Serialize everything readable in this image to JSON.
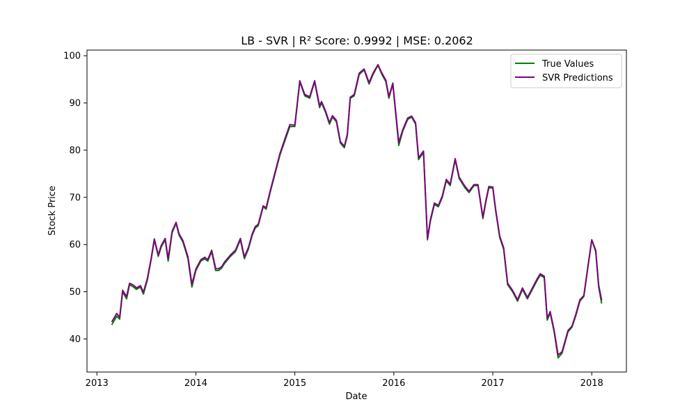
{
  "chart_data": {
    "type": "line",
    "title": "LB - SVR | R² Score: 0.9992 | MSE: 0.2062",
    "xlabel": "Date",
    "ylabel": "Stock Price",
    "x_ticks": [
      "2013",
      "2014",
      "2015",
      "2016",
      "2017",
      "2018"
    ],
    "y_ticks": [
      40,
      50,
      60,
      70,
      80,
      90,
      100
    ],
    "xlim": [
      2012.9,
      2018.35
    ],
    "ylim": [
      33,
      101.2
    ],
    "grid": false,
    "legend_position": "top-right",
    "series": [
      {
        "name": "True Values",
        "color": "#008000",
        "x": [
          2013.15,
          2013.2,
          2013.23,
          2013.26,
          2013.3,
          2013.33,
          2013.37,
          2013.4,
          2013.44,
          2013.47,
          2013.51,
          2013.55,
          2013.58,
          2013.62,
          2013.65,
          2013.69,
          2013.72,
          2013.76,
          2013.8,
          2013.83,
          2013.87,
          2013.92,
          2013.96,
          2014.0,
          2014.05,
          2014.09,
          2014.12,
          2014.16,
          2014.2,
          2014.23,
          2014.26,
          2014.29,
          2014.35,
          2014.4,
          2014.45,
          2014.49,
          2014.53,
          2014.57,
          2014.6,
          2014.63,
          2014.68,
          2014.71,
          2014.75,
          2014.8,
          2014.85,
          2014.9,
          2014.95,
          2015.0,
          2015.05,
          2015.1,
          2015.15,
          2015.2,
          2015.25,
          2015.27,
          2015.31,
          2015.35,
          2015.38,
          2015.42,
          2015.46,
          2015.5,
          2015.53,
          2015.56,
          2015.6,
          2015.65,
          2015.7,
          2015.75,
          2015.79,
          2015.84,
          2015.88,
          2015.92,
          2015.95,
          2015.99,
          2016.05,
          2016.09,
          2016.11,
          2016.14,
          2016.18,
          2016.22,
          2016.25,
          2016.3,
          2016.34,
          2016.37,
          2016.41,
          2016.45,
          2016.49,
          2016.53,
          2016.57,
          2016.62,
          2016.66,
          2016.72,
          2016.76,
          2016.81,
          2016.85,
          2016.9,
          2016.93,
          2016.96,
          2017.0,
          2017.03,
          2017.07,
          2017.11,
          2017.15,
          2017.2,
          2017.25,
          2017.3,
          2017.35,
          2017.4,
          2017.45,
          2017.48,
          2017.52,
          2017.55,
          2017.58,
          2017.62,
          2017.66,
          2017.7,
          2017.76,
          2017.8,
          2017.84,
          2017.88,
          2017.92,
          2017.96,
          2018.0,
          2018.04,
          2018.07,
          2018.1
        ],
        "values": [
          43.0,
          44.8,
          44.2,
          50.0,
          48.5,
          51.5,
          51.0,
          50.5,
          51.0,
          49.5,
          52.5,
          57.0,
          61.0,
          57.5,
          59.5,
          61.0,
          56.5,
          62.5,
          64.5,
          62.0,
          60.5,
          57.0,
          51.0,
          54.5,
          56.5,
          57.0,
          56.5,
          58.5,
          54.5,
          54.5,
          55.0,
          56.0,
          57.5,
          58.5,
          61.0,
          57.0,
          59.0,
          62.0,
          63.5,
          64.0,
          68.0,
          67.5,
          71.0,
          75.0,
          79.0,
          82.0,
          85.0,
          85.0,
          94.5,
          91.5,
          91.0,
          94.5,
          89.0,
          90.0,
          88.0,
          85.5,
          87.0,
          86.0,
          81.5,
          80.5,
          83.0,
          91.0,
          91.5,
          96.0,
          97.0,
          94.0,
          96.0,
          98.0,
          96.0,
          94.5,
          91.0,
          94.0,
          81.0,
          84.0,
          85.0,
          86.5,
          87.0,
          85.5,
          78.0,
          79.5,
          61.0,
          65.0,
          68.5,
          68.0,
          70.0,
          73.5,
          72.5,
          78.0,
          74.0,
          72.0,
          71.0,
          72.5,
          72.5,
          65.5,
          69.0,
          72.0,
          72.0,
          67.0,
          61.5,
          59.0,
          51.5,
          50.0,
          48.0,
          50.5,
          48.5,
          50.5,
          52.5,
          53.5,
          53.0,
          44.0,
          45.5,
          41.5,
          36.0,
          37.0,
          41.5,
          42.5,
          45.0,
          48.0,
          49.0,
          55.0,
          61.0,
          58.5,
          51.0,
          47.5
        ],
        "name_label": "True Values"
      },
      {
        "name": "SVR Predictions",
        "color": "#800080",
        "x": [
          2013.15,
          2013.2,
          2013.23,
          2013.26,
          2013.3,
          2013.33,
          2013.37,
          2013.4,
          2013.44,
          2013.47,
          2013.51,
          2013.55,
          2013.58,
          2013.62,
          2013.65,
          2013.69,
          2013.72,
          2013.76,
          2013.8,
          2013.83,
          2013.87,
          2013.92,
          2013.96,
          2014.0,
          2014.05,
          2014.09,
          2014.12,
          2014.16,
          2014.2,
          2014.23,
          2014.26,
          2014.29,
          2014.35,
          2014.4,
          2014.45,
          2014.49,
          2014.53,
          2014.57,
          2014.6,
          2014.63,
          2014.68,
          2014.71,
          2014.75,
          2014.8,
          2014.85,
          2014.9,
          2014.95,
          2015.0,
          2015.05,
          2015.1,
          2015.15,
          2015.2,
          2015.25,
          2015.27,
          2015.31,
          2015.35,
          2015.38,
          2015.42,
          2015.46,
          2015.5,
          2015.53,
          2015.56,
          2015.6,
          2015.65,
          2015.7,
          2015.75,
          2015.79,
          2015.84,
          2015.88,
          2015.92,
          2015.95,
          2015.99,
          2016.05,
          2016.09,
          2016.11,
          2016.14,
          2016.18,
          2016.22,
          2016.25,
          2016.3,
          2016.34,
          2016.37,
          2016.41,
          2016.45,
          2016.49,
          2016.53,
          2016.57,
          2016.62,
          2016.66,
          2016.72,
          2016.76,
          2016.81,
          2016.85,
          2016.9,
          2016.93,
          2016.96,
          2017.0,
          2017.03,
          2017.07,
          2017.11,
          2017.15,
          2017.2,
          2017.25,
          2017.3,
          2017.35,
          2017.4,
          2017.45,
          2017.48,
          2017.52,
          2017.55,
          2017.58,
          2017.62,
          2017.66,
          2017.7,
          2017.76,
          2017.8,
          2017.84,
          2017.88,
          2017.92,
          2017.96,
          2018.0,
          2018.04,
          2018.07,
          2018.1
        ],
        "values": [
          43.6,
          45.4,
          44.6,
          50.3,
          49.0,
          51.8,
          51.4,
          50.8,
          51.3,
          49.9,
          52.8,
          57.3,
          61.2,
          57.8,
          59.8,
          61.3,
          57.0,
          62.8,
          64.7,
          62.3,
          60.8,
          57.4,
          51.6,
          54.8,
          56.8,
          57.3,
          56.8,
          58.8,
          54.9,
          54.9,
          55.3,
          56.3,
          57.8,
          58.8,
          61.3,
          57.4,
          59.3,
          62.3,
          63.8,
          64.3,
          68.2,
          67.8,
          71.3,
          75.3,
          79.3,
          82.4,
          85.4,
          85.3,
          94.7,
          91.8,
          91.3,
          94.7,
          89.4,
          90.3,
          88.3,
          85.8,
          87.3,
          86.3,
          81.8,
          80.8,
          83.3,
          91.2,
          91.8,
          96.3,
          97.2,
          94.3,
          96.3,
          98.1,
          96.3,
          94.8,
          91.3,
          94.2,
          81.6,
          84.3,
          85.3,
          86.8,
          87.2,
          85.8,
          78.4,
          79.8,
          61.3,
          65.3,
          68.8,
          68.3,
          70.3,
          73.8,
          72.8,
          78.2,
          74.3,
          72.3,
          71.3,
          72.7,
          72.7,
          65.8,
          69.3,
          72.3,
          72.2,
          67.3,
          61.8,
          59.3,
          51.8,
          50.3,
          48.3,
          50.8,
          48.8,
          50.8,
          52.8,
          53.8,
          53.3,
          44.4,
          45.8,
          41.8,
          36.6,
          37.3,
          41.8,
          42.7,
          45.3,
          48.3,
          49.2,
          55.2,
          61.0,
          58.8,
          51.4,
          48.2
        ],
        "name_label": "SVR Predictions"
      }
    ]
  }
}
